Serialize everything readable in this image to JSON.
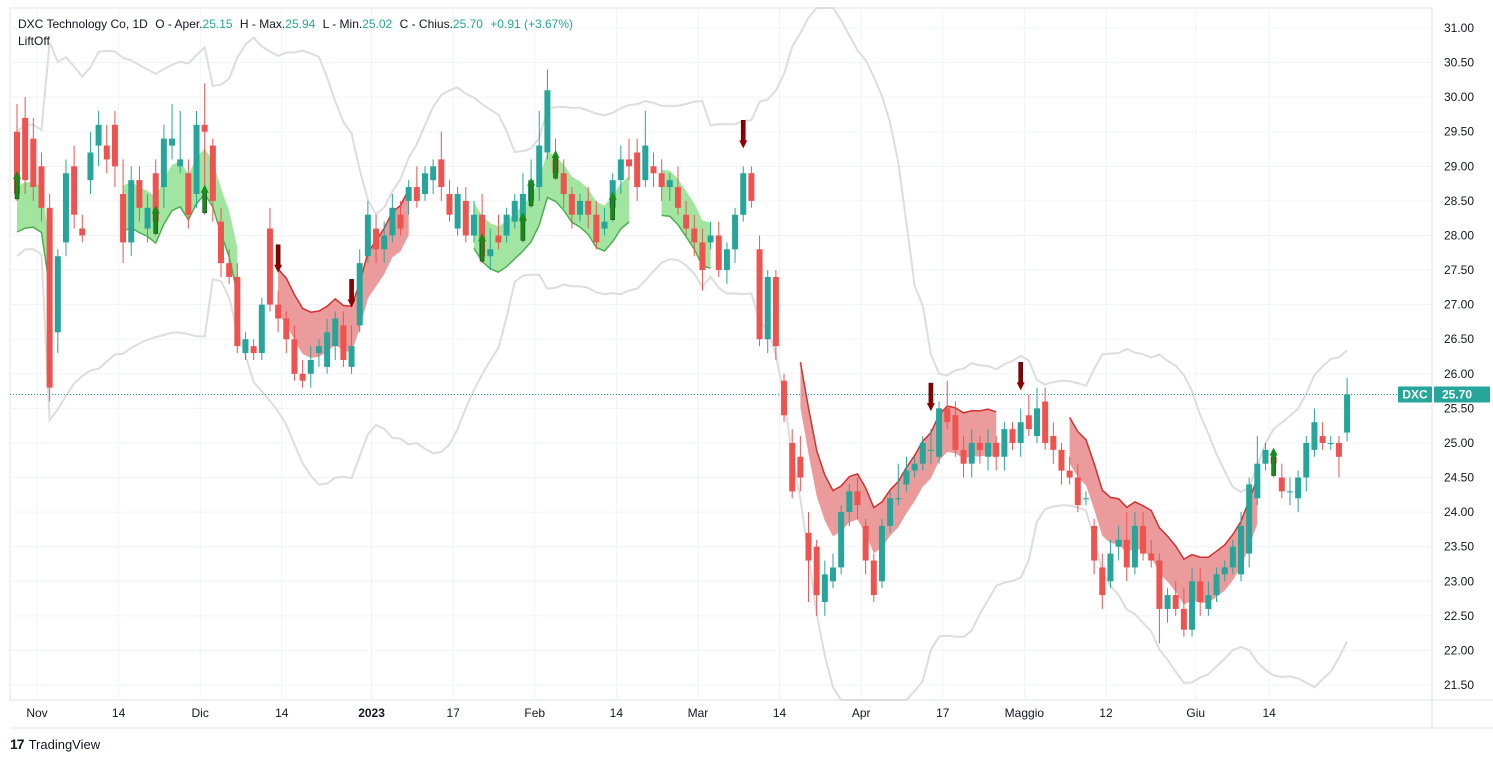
{
  "legend": {
    "name": "DXC Technology Co, 1D",
    "open_label": "O - Aper.",
    "open": "25.15",
    "high_label": "H - Max.",
    "high": "25.94",
    "low_label": "L - Min.",
    "low": "25.02",
    "close_label": "C - Chius.",
    "close": "25.70",
    "change": "+0.91 (+3.67%)",
    "indicator": "LiftOff"
  },
  "price_tag": {
    "symbol": "DXC",
    "value": "25.70"
  },
  "brand": "TradingView",
  "colors": {
    "up": "#26a69a",
    "down": "#ef5350",
    "bull_band": "#90e090",
    "bull_line": "#4caf50",
    "bear_band": "#e88a8a",
    "bear_line": "#d32f2f",
    "envelope": "#dddddd",
    "arrow_up": "#1b8a1b",
    "arrow_down": "#8b0000",
    "grid": "#f0f3fa",
    "axis_text": "#131722"
  },
  "chart_data": {
    "type": "candlestick",
    "symbol": "DXC",
    "interval": "1D",
    "y_range": [
      21.3,
      31.3
    ],
    "y_ticks": [
      "21.50",
      "22.00",
      "22.50",
      "23.00",
      "23.50",
      "24.00",
      "24.50",
      "25.00",
      "25.50",
      "26.00",
      "26.50",
      "27.00",
      "27.50",
      "28.00",
      "28.50",
      "29.00",
      "29.50",
      "30.00",
      "30.50",
      "31.00"
    ],
    "x_ticks": [
      "Nov",
      "14",
      "Dic",
      "14",
      "2023",
      "17",
      "Feb",
      "14",
      "Mar",
      "14",
      "Apr",
      "17",
      "Maggio",
      "12",
      "Giu",
      "14"
    ],
    "x_tick_index": [
      0,
      10,
      20,
      30,
      41,
      51,
      61,
      71,
      81,
      91,
      101,
      111,
      121,
      131,
      142,
      151
    ],
    "last_price": 25.7,
    "candles": [
      [
        29.5,
        28.6,
        29.9,
        28.5
      ],
      [
        29.7,
        28.8,
        30.0,
        28.6
      ],
      [
        29.4,
        28.7,
        29.7,
        28.5
      ],
      [
        29.0,
        28.4,
        29.2,
        28.2
      ],
      [
        28.4,
        25.8,
        28.6,
        25.6
      ],
      [
        26.6,
        27.7,
        27.8,
        26.3
      ],
      [
        27.9,
        28.9,
        29.1,
        27.7
      ],
      [
        29.0,
        28.3,
        29.3,
        28.1
      ],
      [
        28.1,
        28.0,
        28.3,
        27.9
      ],
      [
        28.8,
        29.2,
        29.5,
        28.6
      ],
      [
        29.3,
        29.6,
        29.8,
        29.0
      ],
      [
        29.3,
        29.1,
        29.6,
        28.9
      ],
      [
        29.6,
        29.0,
        29.8,
        28.7
      ],
      [
        28.6,
        27.9,
        29.1,
        27.6
      ],
      [
        27.9,
        28.8,
        29.0,
        27.7
      ],
      [
        28.8,
        28.4,
        29.0,
        28.2
      ],
      [
        28.1,
        28.4,
        28.6,
        27.9
      ],
      [
        28.9,
        28.2,
        29.1,
        28.0
      ],
      [
        28.7,
        29.4,
        29.6,
        28.4
      ],
      [
        29.3,
        29.4,
        29.9,
        29.1
      ],
      [
        29.0,
        29.1,
        29.8,
        28.9
      ],
      [
        28.9,
        28.3,
        29.1,
        28.1
      ],
      [
        28.6,
        29.6,
        29.8,
        28.4
      ],
      [
        29.6,
        29.5,
        30.2,
        28.3
      ],
      [
        29.3,
        28.5,
        29.4,
        28.2
      ],
      [
        28.2,
        27.6,
        28.4,
        27.4
      ],
      [
        27.6,
        27.4,
        27.8,
        27.3
      ],
      [
        27.4,
        26.4,
        27.6,
        26.3
      ],
      [
        26.3,
        26.5,
        26.6,
        26.2
      ],
      [
        26.4,
        26.3,
        26.5,
        26.2
      ],
      [
        26.3,
        27.0,
        27.1,
        26.2
      ],
      [
        28.1,
        27.0,
        28.4,
        26.9
      ],
      [
        27.0,
        26.8,
        27.2,
        26.6
      ],
      [
        26.8,
        26.5,
        26.9,
        26.3
      ],
      [
        26.5,
        26.0,
        26.7,
        25.9
      ],
      [
        26.0,
        25.9,
        26.2,
        25.8
      ],
      [
        26.0,
        26.2,
        26.4,
        25.8
      ],
      [
        26.3,
        26.4,
        26.5,
        26.1
      ],
      [
        26.1,
        26.6,
        26.8,
        26.0
      ],
      [
        26.4,
        26.8,
        26.9,
        26.2
      ],
      [
        26.7,
        26.2,
        26.9,
        26.1
      ],
      [
        26.1,
        26.4,
        26.7,
        26.0
      ],
      [
        26.7,
        27.6,
        27.8,
        26.6
      ],
      [
        27.7,
        28.3,
        28.5,
        27.6
      ],
      [
        28.1,
        27.8,
        28.3,
        27.6
      ],
      [
        27.8,
        28.0,
        28.2,
        27.6
      ],
      [
        28.0,
        28.4,
        28.6,
        27.9
      ],
      [
        28.3,
        28.1,
        28.5,
        28.0
      ],
      [
        28.5,
        28.7,
        28.8,
        28.3
      ],
      [
        28.7,
        28.5,
        29.0,
        28.4
      ],
      [
        28.6,
        28.9,
        29.0,
        28.5
      ],
      [
        28.8,
        29.0,
        29.1,
        28.6
      ],
      [
        29.1,
        28.7,
        29.5,
        28.5
      ],
      [
        28.6,
        28.3,
        28.8,
        28.2
      ],
      [
        28.1,
        28.6,
        28.7,
        28.0
      ],
      [
        28.5,
        28.0,
        28.7,
        27.9
      ],
      [
        28.0,
        28.3,
        28.5,
        27.9
      ],
      [
        28.3,
        27.7,
        28.6,
        27.6
      ],
      [
        27.7,
        27.8,
        28.1,
        27.5
      ],
      [
        28.0,
        27.9,
        28.3,
        27.8
      ],
      [
        28.0,
        28.3,
        28.4,
        27.9
      ],
      [
        28.2,
        28.5,
        28.6,
        28.1
      ],
      [
        28.2,
        28.6,
        28.9,
        27.9
      ],
      [
        28.5,
        28.8,
        29.1,
        28.4
      ],
      [
        28.7,
        29.3,
        29.8,
        28.5
      ],
      [
        29.2,
        30.1,
        30.4,
        29.1
      ],
      [
        29.1,
        28.9,
        29.4,
        28.8
      ],
      [
        28.9,
        28.6,
        29.1,
        28.4
      ],
      [
        28.6,
        28.3,
        28.7,
        28.1
      ],
      [
        28.3,
        28.5,
        28.6,
        28.2
      ],
      [
        28.5,
        28.3,
        28.7,
        28.1
      ],
      [
        28.3,
        27.9,
        28.5,
        27.8
      ],
      [
        28.1,
        28.2,
        28.4,
        28.0
      ],
      [
        28.4,
        28.8,
        28.9,
        28.2
      ],
      [
        28.8,
        29.1,
        29.3,
        28.6
      ],
      [
        29.1,
        29.0,
        29.4,
        28.8
      ],
      [
        29.2,
        28.7,
        29.4,
        28.5
      ],
      [
        28.8,
        29.3,
        29.8,
        28.7
      ],
      [
        29.0,
        28.9,
        29.2,
        28.7
      ],
      [
        28.9,
        28.7,
        29.1,
        28.5
      ],
      [
        28.7,
        28.8,
        28.9,
        28.5
      ],
      [
        28.7,
        28.4,
        29.0,
        28.3
      ],
      [
        28.3,
        28.1,
        28.5,
        28.0
      ],
      [
        28.1,
        27.9,
        28.3,
        27.7
      ],
      [
        27.9,
        27.5,
        28.1,
        27.2
      ],
      [
        27.9,
        28.0,
        28.2,
        27.8
      ],
      [
        28.0,
        27.5,
        28.2,
        27.4
      ],
      [
        27.5,
        27.8,
        27.9,
        27.3
      ],
      [
        27.8,
        28.3,
        28.4,
        27.6
      ],
      [
        28.3,
        28.9,
        29.0,
        28.2
      ],
      [
        28.9,
        28.5,
        29.0,
        28.4
      ],
      [
        27.8,
        26.5,
        28.0,
        26.4
      ],
      [
        26.5,
        27.4,
        27.5,
        26.3
      ],
      [
        27.4,
        26.4,
        27.5,
        26.2
      ],
      [
        25.9,
        25.4,
        26.0,
        25.3
      ],
      [
        25.0,
        24.3,
        25.2,
        24.2
      ],
      [
        24.8,
        24.5,
        25.1,
        24.3
      ],
      [
        23.7,
        23.3,
        24.0,
        22.7
      ],
      [
        23.5,
        22.8,
        23.6,
        22.5
      ],
      [
        22.7,
        23.1,
        23.3,
        22.5
      ],
      [
        23.0,
        23.2,
        23.4,
        22.9
      ],
      [
        23.2,
        24.0,
        24.1,
        23.1
      ],
      [
        24.0,
        24.3,
        24.4,
        23.8
      ],
      [
        24.3,
        24.1,
        24.5,
        23.9
      ],
      [
        23.8,
        23.3,
        23.9,
        23.1
      ],
      [
        23.3,
        22.8,
        23.4,
        22.7
      ],
      [
        23.0,
        23.8,
        23.9,
        22.9
      ],
      [
        23.8,
        24.2,
        24.3,
        23.7
      ],
      [
        24.2,
        24.2,
        24.7,
        24.1
      ],
      [
        24.4,
        24.6,
        24.8,
        24.3
      ],
      [
        24.6,
        24.7,
        24.8,
        24.5
      ],
      [
        24.7,
        25.0,
        25.1,
        24.6
      ],
      [
        24.9,
        24.9,
        25.2,
        24.7
      ],
      [
        24.8,
        25.5,
        25.6,
        24.7
      ],
      [
        25.5,
        25.3,
        25.9,
        25.2
      ],
      [
        25.4,
        24.9,
        25.6,
        24.8
      ],
      [
        24.9,
        24.7,
        25.1,
        24.5
      ],
      [
        24.7,
        25.0,
        25.2,
        24.5
      ],
      [
        25.0,
        24.9,
        25.1,
        24.7
      ],
      [
        24.8,
        25.0,
        25.2,
        24.6
      ],
      [
        25.0,
        24.8,
        25.1,
        24.6
      ],
      [
        24.8,
        25.2,
        25.3,
        24.6
      ],
      [
        25.2,
        25.0,
        25.3,
        24.9
      ],
      [
        25.0,
        25.3,
        25.5,
        24.8
      ],
      [
        25.4,
        25.2,
        25.7,
        25.1
      ],
      [
        25.1,
        25.5,
        25.8,
        25.0
      ],
      [
        25.6,
        25.0,
        25.8,
        24.9
      ],
      [
        25.1,
        24.9,
        25.3,
        24.7
      ],
      [
        24.9,
        24.6,
        25.0,
        24.4
      ],
      [
        24.6,
        24.5,
        24.8,
        24.4
      ],
      [
        24.5,
        24.1,
        24.7,
        24.0
      ],
      [
        24.2,
        24.2,
        24.3,
        24.1
      ],
      [
        23.8,
        23.3,
        23.9,
        23.1
      ],
      [
        23.2,
        22.8,
        23.4,
        22.6
      ],
      [
        23.0,
        23.4,
        23.6,
        22.9
      ],
      [
        23.5,
        23.6,
        23.8,
        23.3
      ],
      [
        23.6,
        23.2,
        24.0,
        23.0
      ],
      [
        23.2,
        23.8,
        24.0,
        23.1
      ],
      [
        23.8,
        23.4,
        24.0,
        23.3
      ],
      [
        23.4,
        23.3,
        23.6,
        23.2
      ],
      [
        23.3,
        22.6,
        23.4,
        22.1
      ],
      [
        22.6,
        22.8,
        22.9,
        22.4
      ],
      [
        22.8,
        22.6,
        23.0,
        22.5
      ],
      [
        22.6,
        22.3,
        22.9,
        22.2
      ],
      [
        22.3,
        23.0,
        23.2,
        22.2
      ],
      [
        23.0,
        22.7,
        23.2,
        22.5
      ],
      [
        22.6,
        22.8,
        23.0,
        22.5
      ],
      [
        22.8,
        23.1,
        23.2,
        22.7
      ],
      [
        23.1,
        23.2,
        23.3,
        23.0
      ],
      [
        23.2,
        23.5,
        23.6,
        23.1
      ],
      [
        23.1,
        23.8,
        24.0,
        23.0
      ],
      [
        23.4,
        24.4,
        24.5,
        23.2
      ],
      [
        24.2,
        24.7,
        25.1,
        24.1
      ],
      [
        24.7,
        24.9,
        25.0,
        24.6
      ],
      [
        24.8,
        24.7,
        24.9,
        24.5
      ],
      [
        24.5,
        24.3,
        24.7,
        24.2
      ],
      [
        24.3,
        24.3,
        24.5,
        24.1
      ],
      [
        24.2,
        24.5,
        24.6,
        24.0
      ],
      [
        24.5,
        25.0,
        25.1,
        24.3
      ],
      [
        24.9,
        25.3,
        25.5,
        24.8
      ],
      [
        25.1,
        25.0,
        25.3,
        24.9
      ],
      [
        25.0,
        25.0,
        25.1,
        24.9
      ],
      [
        25.0,
        24.8,
        25.1,
        24.5
      ],
      [
        25.15,
        25.7,
        25.94,
        25.02
      ]
    ],
    "up_arrows": [
      0,
      17,
      23,
      57,
      62,
      63,
      66,
      73,
      154
    ],
    "down_arrows": [
      32,
      41,
      89,
      112,
      123
    ]
  }
}
